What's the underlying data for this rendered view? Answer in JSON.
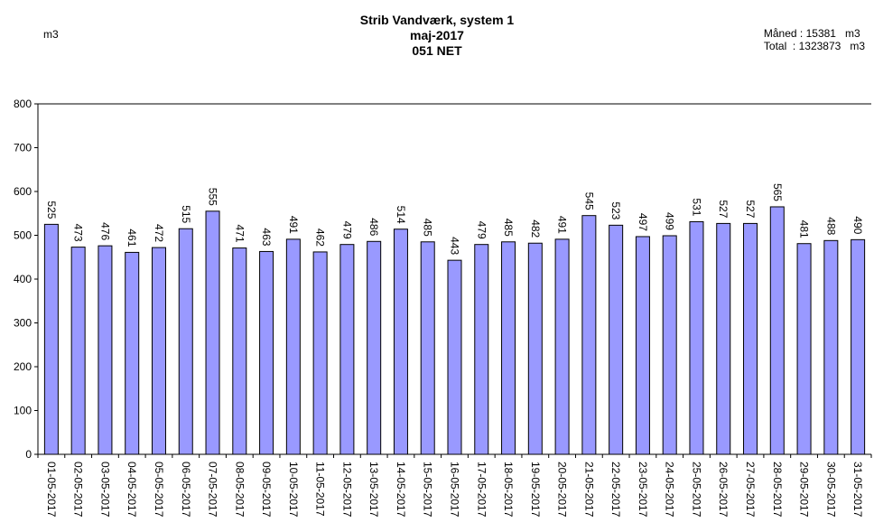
{
  "header": {
    "title": "Strib Vandværk, system 1",
    "period": "maj-2017",
    "subtitle": "051 NET",
    "unit": "m3"
  },
  "summary": {
    "month_label": "Måned",
    "month_value": "15381",
    "month_unit": "m3",
    "total_label": "Total",
    "total_value": "1323873",
    "total_unit": "m3"
  },
  "chart_data": {
    "type": "bar",
    "title": "Strib Vandværk, system 1",
    "ylabel": "m3",
    "ylim": [
      0,
      800
    ],
    "yticks": [
      0,
      100,
      200,
      300,
      400,
      500,
      600,
      700,
      800
    ],
    "bar_color": "#9999ff",
    "categories": [
      "01-05-2017",
      "02-05-2017",
      "03-05-2017",
      "04-05-2017",
      "05-05-2017",
      "06-05-2017",
      "07-05-2017",
      "08-05-2017",
      "09-05-2017",
      "10-05-2017",
      "11-05-2017",
      "12-05-2017",
      "13-05-2017",
      "14-05-2017",
      "15-05-2017",
      "16-05-2017",
      "17-05-2017",
      "18-05-2017",
      "19-05-2017",
      "20-05-2017",
      "21-05-2017",
      "22-05-2017",
      "23-05-2017",
      "24-05-2017",
      "25-05-2017",
      "26-05-2017",
      "27-05-2017",
      "28-05-2017",
      "29-05-2017",
      "30-05-2017",
      "31-05-2017"
    ],
    "values": [
      525,
      473,
      476,
      461,
      472,
      515,
      555,
      471,
      463,
      491,
      462,
      479,
      486,
      514,
      485,
      443,
      479,
      485,
      482,
      491,
      545,
      523,
      497,
      499,
      531,
      527,
      527,
      565,
      481,
      488,
      490
    ]
  }
}
